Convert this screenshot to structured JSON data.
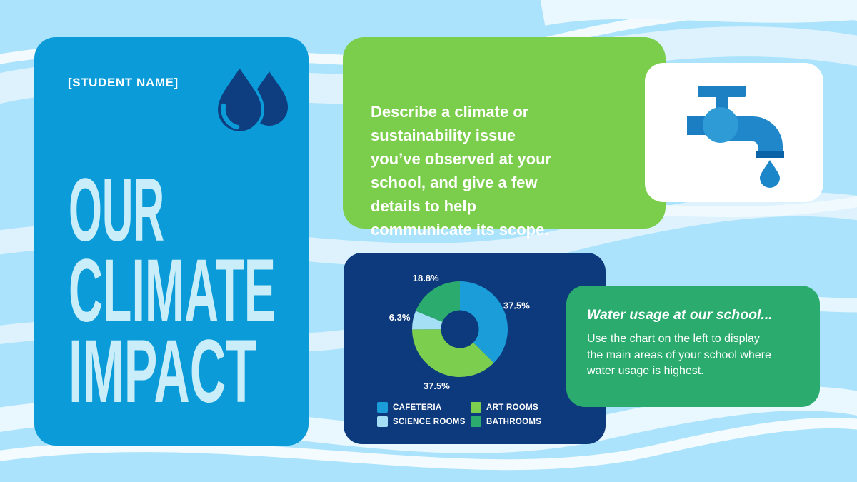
{
  "background": {
    "base_color": "#aae3fb",
    "wave_band_color": "#ddf2fd",
    "wave_line_color": "#f2fafe"
  },
  "student_card": {
    "bg_color": "#0a9bd8",
    "student_name": "[STUDENT NAME]",
    "title_lines": [
      "OUR",
      "CLIMATE",
      "IMPACT"
    ],
    "title_color": "#c9eef9",
    "icon": "water-drops-icon"
  },
  "prompt_card": {
    "bg_color": "#7bce4b",
    "text": "Describe a climate or\nsustainability issue\nyou’ve observed at your\nschool, and give a few\ndetails to help\ncommunicate its scope."
  },
  "faucet_card": {
    "bg_color": "#ffffff",
    "icon": "faucet-icon"
  },
  "chart_card": {
    "bg_color": "#0d3a7c"
  },
  "chart_data": {
    "type": "donut",
    "title": "",
    "direction": "clockwise",
    "start_angle": "top",
    "inner_radius_ratio": 0.4,
    "legend_position": "bottom",
    "segments": [
      {
        "label": "CAFETERIA",
        "value": 37.5,
        "display": "37.5%",
        "color": "#1b9dd9"
      },
      {
        "label": "ART ROOMS",
        "value": 37.5,
        "display": "37.5%",
        "color": "#7ccf4e"
      },
      {
        "label": "SCIENCE ROOMS",
        "value": 6.3,
        "display": "6.3%",
        "color": "#a5dff5"
      },
      {
        "label": "BATHROOMS",
        "value": 18.8,
        "display": "18.8%",
        "color": "#2bac6e"
      }
    ]
  },
  "note_card": {
    "bg_color": "#2bac6e",
    "title": "Water usage at our school...",
    "body": "Use the chart on the left to display\nthe main areas of your school where\nwater usage is highest."
  }
}
